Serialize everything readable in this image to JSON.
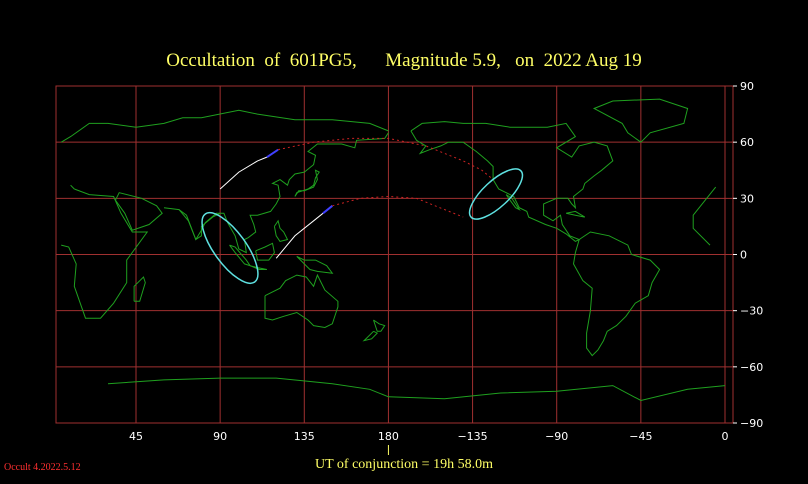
{
  "title": "Occultation  of  601PG5,      Magnitude 5.9,   on  2022 Aug 19",
  "footer": "UT of conjunction = 19h 58.0m",
  "version": "Occult 4.2022.5.12",
  "colors": {
    "grid": "#a03030",
    "coast": "#1fa01f",
    "path": "#ffffff",
    "shadow": "#5ee0e0",
    "dotted": "#cc2222",
    "title": "#ffff66",
    "axis_label": "#ffffff"
  },
  "map": {
    "projection": "equirectangular",
    "lon_range": [
      -355,
      5
    ],
    "lat_range": [
      -90,
      90
    ],
    "lon_grid": [
      45,
      90,
      135,
      180,
      -135,
      -90,
      -45,
      0
    ],
    "lat_grid": [
      60,
      30,
      0,
      -30,
      -60
    ],
    "lon_labels": [
      "45",
      "90",
      "135",
      "180",
      "−135",
      "−90",
      "−45",
      "0"
    ],
    "lat_labels": [
      "90",
      "60",
      "30",
      "0",
      "−30",
      "−60",
      "−90"
    ]
  }
}
